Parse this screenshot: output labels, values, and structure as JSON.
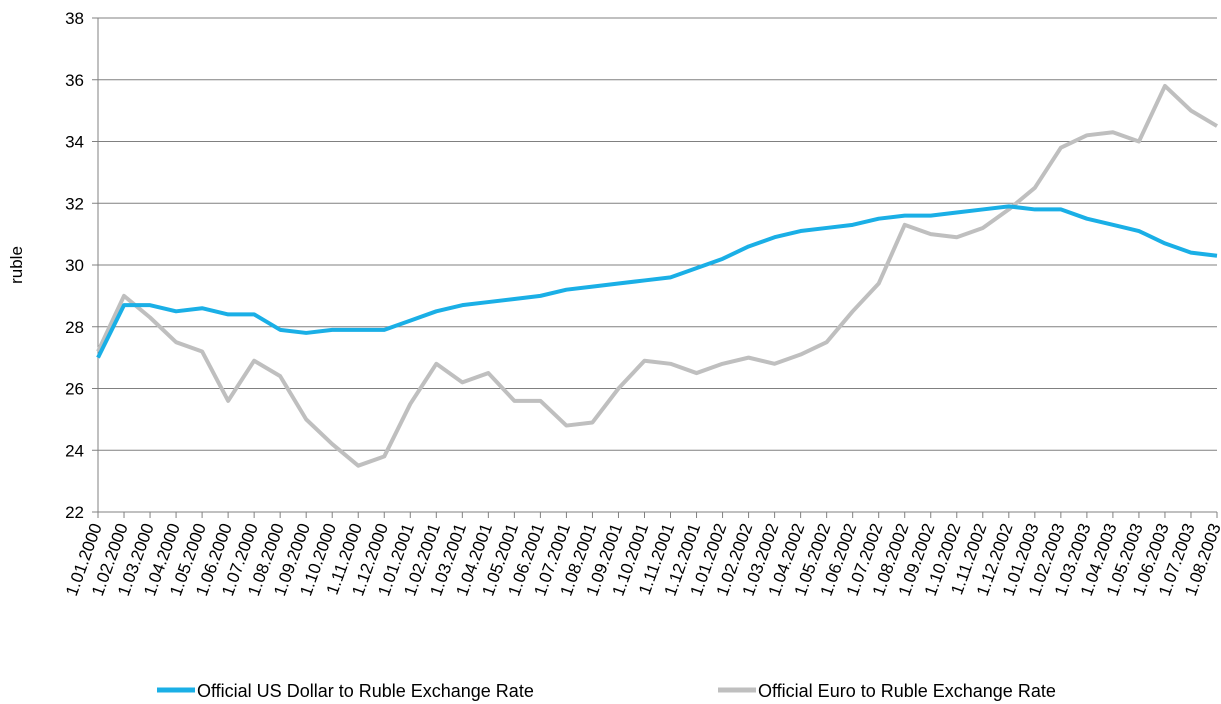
{
  "chart_data": {
    "type": "line",
    "y_label": "ruble",
    "categories": [
      "1.01.2000",
      "1.02.2000",
      "1.03.2000",
      "1.04.2000",
      "1.05.2000",
      "1.06.2000",
      "1.07.2000",
      "1.08.2000",
      "1.09.2000",
      "1.10.2000",
      "1.11.2000",
      "1.12.2000",
      "1.01.2001",
      "1.02.2001",
      "1.03.2001",
      "1.04.2001",
      "1.05.2001",
      "1.06.2001",
      "1.07.2001",
      "1.08.2001",
      "1.09.2001",
      "1.10.2001",
      "1.11.2001",
      "1.12.2001",
      "1.01.2002",
      "1.02.2002",
      "1.03.2002",
      "1.04.2002",
      "1.05.2002",
      "1.06.2002",
      "1.07.2002",
      "1.08.2002",
      "1.09.2002",
      "1.10.2002",
      "1.11.2002",
      "1.12.2002",
      "1.01.2003",
      "1.02.2003",
      "1.03.2003",
      "1.04.2003",
      "1.05.2003",
      "1.06.2003",
      "1.07.2003",
      "1.08.2003"
    ],
    "series": [
      {
        "name": "Official US Dollar to Ruble Exchange Rate",
        "color": "#1aafe6",
        "values": [
          27.0,
          28.7,
          28.7,
          28.5,
          28.6,
          28.4,
          28.4,
          27.9,
          27.8,
          27.9,
          27.9,
          27.9,
          28.2,
          28.5,
          28.7,
          28.8,
          28.9,
          29.0,
          29.2,
          29.3,
          29.4,
          29.5,
          29.6,
          29.9,
          30.2,
          30.6,
          30.9,
          31.1,
          31.2,
          31.3,
          31.5,
          31.6,
          31.6,
          31.7,
          31.8,
          31.9,
          31.8,
          31.8,
          31.5,
          31.3,
          31.1,
          30.7,
          30.4,
          30.3
        ]
      },
      {
        "name": "Official Euro to Ruble Exchange Rate",
        "color": "#bfbfbf",
        "values": [
          27.2,
          29.0,
          28.3,
          27.5,
          27.2,
          25.6,
          26.9,
          26.4,
          25.0,
          24.2,
          23.5,
          23.8,
          25.5,
          26.8,
          26.2,
          26.5,
          25.6,
          25.6,
          24.8,
          24.9,
          26.0,
          26.9,
          26.8,
          26.5,
          26.8,
          27.0,
          26.8,
          27.1,
          27.5,
          28.5,
          29.4,
          31.3,
          31.0,
          30.9,
          31.2,
          31.8,
          32.5,
          33.8,
          34.2,
          34.3,
          34.0,
          35.8,
          35.0,
          34.5
        ]
      }
    ],
    "ylim": [
      22,
      38
    ],
    "yticks": [
      22,
      24,
      26,
      28,
      30,
      32,
      34,
      36,
      38
    ],
    "grid": true
  }
}
